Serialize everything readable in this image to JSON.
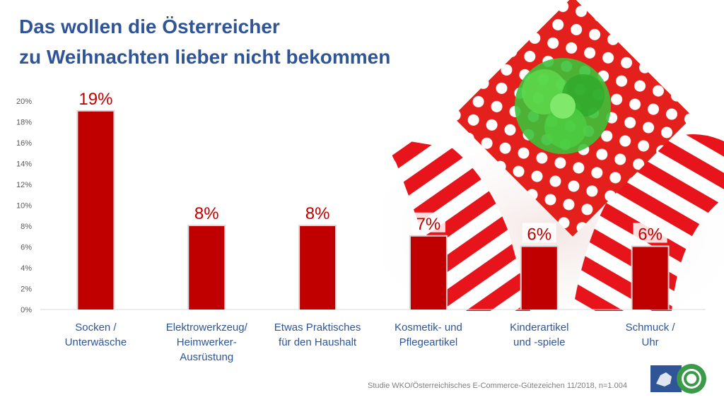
{
  "title": {
    "line1": "Das wollen die Österreicher",
    "line2": "zu Weihnachten lieber nicht bekommen"
  },
  "source": "Studie WKO/Österreichisches E-Commerce-Gütezeichen 11/2018, n=1.004",
  "logo": {
    "name": "ecommerce-guetezeichen-logo"
  },
  "colors": {
    "title": "#2f5597",
    "bar": "#c00000",
    "bar_outline": "#d9d9d9",
    "data_label": "#c00000",
    "axis_text": "#595959",
    "category_text": "#2f5597"
  },
  "chart_data": {
    "type": "bar",
    "title": "Das wollen die Österreicher zu Weihnachten lieber nicht bekommen",
    "xlabel": "",
    "ylabel": "",
    "ylim": [
      0,
      20
    ],
    "yticks": [
      "0%",
      "2%",
      "4%",
      "6%",
      "8%",
      "10%",
      "12%",
      "14%",
      "16%",
      "18%",
      "20%"
    ],
    "grid": false,
    "legend": "none",
    "categories": [
      [
        "Socken /",
        "Unterwäsche"
      ],
      [
        "Elektrowerkzeug/",
        "Heimwerker-",
        "Ausrüstung"
      ],
      [
        "Etwas Praktisches",
        "für den Haushalt"
      ],
      [
        "Kosmetik- und",
        "Pflegeartikel"
      ],
      [
        "Kinderartikel",
        "und -spiele"
      ],
      [
        "Schmuck /",
        "Uhr"
      ]
    ],
    "values": [
      19,
      8,
      8,
      7,
      6,
      6
    ],
    "data_labels": [
      "19%",
      "8%",
      "8%",
      "7%",
      "6%",
      "6%"
    ]
  }
}
